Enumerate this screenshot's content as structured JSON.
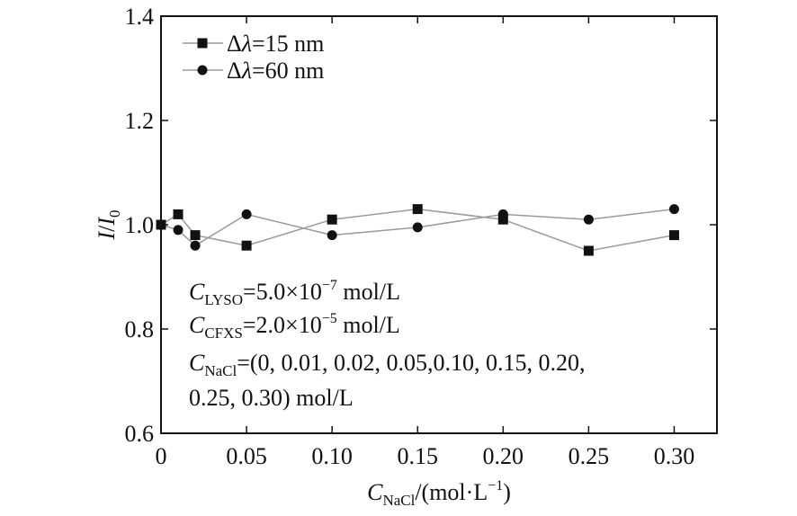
{
  "chart_data": {
    "type": "line",
    "xlabel": {
      "main": "C",
      "sub": "NaCl",
      "rest": "/(mol·L",
      "sup": "−1",
      "close": ")"
    },
    "ylabel": {
      "i": "I",
      "slash": "/",
      "i0": "I",
      "zero": "0"
    },
    "xlim": [
      0,
      0.325
    ],
    "ylim": [
      0.6,
      1.4
    ],
    "x_ticks": [
      0,
      0.05,
      0.1,
      0.15,
      0.2,
      0.25,
      0.3
    ],
    "x_tick_labels": [
      "0",
      "0.05",
      "0.10",
      "0.15",
      "0.20",
      "0.25",
      "0.30"
    ],
    "y_ticks": [
      0.6,
      0.8,
      1.0,
      1.2,
      1.4
    ],
    "y_tick_labels": [
      "0.6",
      "0.8",
      "1.0",
      "1.2",
      "1.4"
    ],
    "x": [
      0,
      0.01,
      0.02,
      0.05,
      0.1,
      0.15,
      0.2,
      0.25,
      0.3
    ],
    "series": [
      {
        "name": "Δλ=15 nm",
        "prefix": "Δ",
        "lambda": "λ",
        "suffix": "=15 nm",
        "marker": "square",
        "values": [
          1.0,
          1.02,
          0.98,
          0.96,
          1.01,
          1.03,
          1.01,
          0.95,
          0.98
        ]
      },
      {
        "name": "Δλ=60 nm",
        "prefix": "Δ",
        "lambda": "λ",
        "suffix": "=60 nm",
        "marker": "circle",
        "values": [
          1.0,
          0.99,
          0.96,
          1.02,
          0.98,
          0.995,
          1.02,
          1.01,
          1.03
        ]
      }
    ],
    "legend_position": "top-left",
    "grid": false,
    "annotations": {
      "line1": {
        "c": "C",
        "sub": "LYSO",
        "text": "=5.0×10",
        "sup": "−7",
        "unit": " mol/L"
      },
      "line2": {
        "c": "C",
        "sub": "CFXS",
        "text": "=2.0×10",
        "sup": "−5",
        "unit": " mol/L"
      },
      "line3": {
        "c": "C",
        "sub": "NaCl",
        "text": "=(0, 0.01, 0.02, 0.05,0.10, 0.15, 0.20,"
      },
      "line4": "0.25, 0.30) mol/L"
    },
    "colors": {
      "line": "#9a9a9a",
      "marker": "#111111",
      "axis": "#111111"
    }
  }
}
